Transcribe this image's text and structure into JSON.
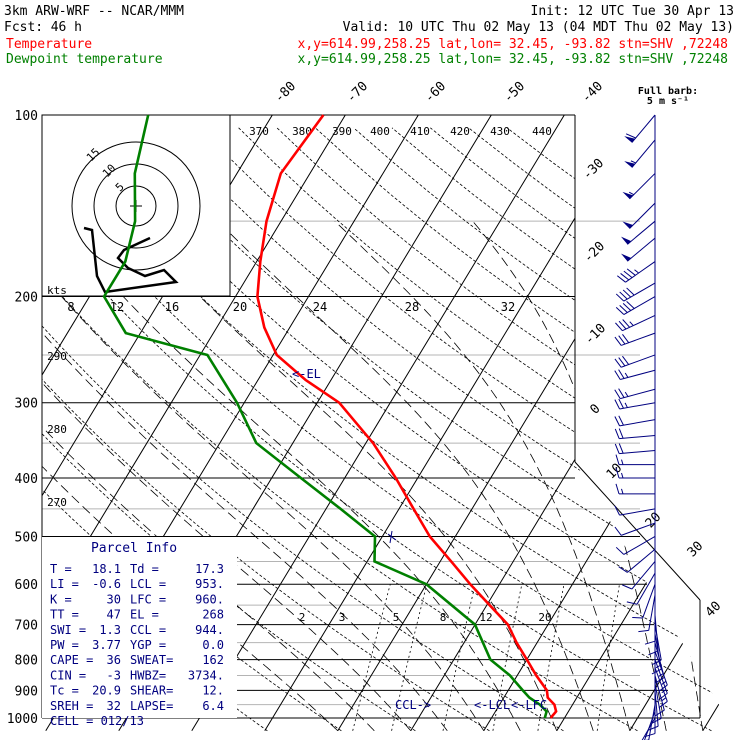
{
  "header": {
    "model": "3km ARW-WRF -- NCAR/MMM",
    "init": "Init: 12 UTC Tue 30 Apr 13",
    "fcst_label": "Fcst:",
    "fcst_value": "46 h",
    "valid": "Valid: 10 UTC Thu 02 May 13 (04 MDT Thu 02 May 13)",
    "temp_label": "Temperature",
    "temp_info": "x,y=614.99,258.25   lat,lon= 32.45, -93.82  stn=SHV ,72248",
    "dew_label": "Dewpoint temperature",
    "dew_info": "x,y=614.99,258.25   lat,lon= 32.45, -93.82  stn=SHV ,72248"
  },
  "colors": {
    "temperature": "#ff0000",
    "dewpoint": "#008000",
    "text": "#000000",
    "annotation": "#000080",
    "wind": "#000080",
    "moist_adiabat": "#000000"
  },
  "chart_data": {
    "type": "line",
    "title": "",
    "pressure_levels": [
      "100",
      "200",
      "300",
      "400",
      "500",
      "600",
      "700",
      "800",
      "900",
      "1000"
    ],
    "skewed_temperature_labels": [
      "-80",
      "-70",
      "-60",
      "-50",
      "-40",
      "-30",
      "-20",
      "-10",
      "0",
      "10",
      "20",
      "30",
      "40"
    ],
    "theta_labels": [
      "370",
      "380",
      "390",
      "400",
      "410",
      "420",
      "430",
      "440",
      "290",
      "280",
      "270"
    ],
    "mixing_ratio_labels": [
      "2",
      "3",
      "5",
      "8",
      "12",
      "20"
    ],
    "series": [
      {
        "name": "Temperature",
        "color": "#ff0000",
        "points": [
          [
            1000,
            18.1
          ],
          [
            975,
            18.3
          ],
          [
            950,
            17.5
          ],
          [
            925,
            16.0
          ],
          [
            900,
            15.3
          ],
          [
            850,
            12.6
          ],
          [
            800,
            10.0
          ],
          [
            750,
            7.2
          ],
          [
            700,
            4.5
          ],
          [
            650,
            0.4
          ],
          [
            600,
            -4.0
          ],
          [
            550,
            -8.5
          ],
          [
            500,
            -13.5
          ],
          [
            450,
            -18.0
          ],
          [
            400,
            -23.0
          ],
          [
            350,
            -29.0
          ],
          [
            300,
            -37.0
          ],
          [
            275,
            -43.5
          ],
          [
            250,
            -49.5
          ],
          [
            225,
            -53.5
          ],
          [
            200,
            -57.0
          ],
          [
            175,
            -59.5
          ],
          [
            150,
            -62.0
          ],
          [
            125,
            -64.0
          ],
          [
            100,
            -63.0
          ]
        ]
      },
      {
        "name": "Dewpoint temperature",
        "color": "#008000",
        "points": [
          [
            1000,
            17.3
          ],
          [
            975,
            17.0
          ],
          [
            950,
            15.5
          ],
          [
            925,
            13.5
          ],
          [
            900,
            12.0
          ],
          [
            850,
            9.0
          ],
          [
            800,
            5.0
          ],
          [
            700,
            0.0
          ],
          [
            600,
            -10.0
          ],
          [
            550,
            -19.0
          ],
          [
            500,
            -21.0
          ],
          [
            450,
            -28.0
          ],
          [
            400,
            -36.0
          ],
          [
            350,
            -45.0
          ],
          [
            300,
            -51.0
          ],
          [
            250,
            -59.0
          ],
          [
            230,
            -72.0
          ],
          [
            200,
            -78.0
          ],
          [
            175,
            -78.0
          ],
          [
            150,
            -80.0
          ],
          [
            125,
            -84.0
          ],
          [
            100,
            -87.0
          ]
        ]
      }
    ],
    "annotations": [
      {
        "text": "<-EL",
        "pressure": 268
      },
      {
        "text": "CCL->",
        "pressure": 944
      },
      {
        "text": "<-LCL",
        "pressure": 953
      },
      {
        "text": "<-LFC",
        "pressure": 960
      }
    ],
    "wind_barbs_note": "Full barb: 5 m s-1",
    "wind_barbs": [
      [
        100,
        220,
        30
      ],
      [
        110,
        220,
        28
      ],
      [
        125,
        225,
        27
      ],
      [
        140,
        225,
        25
      ],
      [
        150,
        230,
        25
      ],
      [
        160,
        230,
        24
      ],
      [
        175,
        235,
        22
      ],
      [
        190,
        240,
        20
      ],
      [
        200,
        240,
        19
      ],
      [
        215,
        245,
        18
      ],
      [
        230,
        250,
        16
      ],
      [
        250,
        250,
        14
      ],
      [
        265,
        255,
        12
      ],
      [
        285,
        255,
        12
      ],
      [
        300,
        260,
        12
      ],
      [
        320,
        260,
        10
      ],
      [
        340,
        265,
        10
      ],
      [
        360,
        265,
        9
      ],
      [
        380,
        270,
        8
      ],
      [
        400,
        270,
        8
      ],
      [
        425,
        270,
        7
      ],
      [
        450,
        260,
        6
      ],
      [
        475,
        250,
        6
      ],
      [
        500,
        240,
        5
      ],
      [
        525,
        230,
        5
      ],
      [
        550,
        220,
        5
      ],
      [
        575,
        210,
        5
      ],
      [
        600,
        200,
        6
      ],
      [
        625,
        190,
        5
      ],
      [
        650,
        180,
        6
      ],
      [
        675,
        175,
        5
      ],
      [
        700,
        170,
        6
      ],
      [
        725,
        170,
        7
      ],
      [
        750,
        165,
        7
      ],
      [
        775,
        160,
        8
      ],
      [
        800,
        160,
        8
      ],
      [
        825,
        160,
        7
      ],
      [
        850,
        165,
        6
      ],
      [
        875,
        170,
        5
      ],
      [
        900,
        175,
        5
      ],
      [
        925,
        180,
        5
      ],
      [
        950,
        190,
        4
      ],
      [
        975,
        200,
        3
      ],
      [
        1000,
        210,
        2
      ]
    ]
  },
  "hodograph": {
    "units_label": "kts",
    "axis_labels": [
      "8",
      "12",
      "16",
      "20",
      "24",
      "28",
      "32"
    ],
    "ring_labels": [
      "5",
      "10",
      "15"
    ]
  },
  "wind_legend": {
    "line1": "Full barb:",
    "line2": "5 m s⁻¹"
  },
  "parcel_info": {
    "title": "Parcel Info",
    "rows": [
      {
        "label1": "T  =",
        "value1": "18.1",
        "label2": "Td =",
        "value2": "17.3"
      },
      {
        "label1": "LI =",
        "value1": "-0.6",
        "label2": "LCL =",
        "value2": "953."
      },
      {
        "label1": "K  =",
        "value1": "30",
        "label2": "LFC =",
        "value2": "960."
      },
      {
        "label1": "TT =",
        "value1": "47",
        "label2": "EL  =",
        "value2": "268"
      },
      {
        "label1": "SWI =",
        "value1": "1.3",
        "label2": "CCL =",
        "value2": "944."
      },
      {
        "label1": "PW =",
        "value1": "3.77",
        "label2": "YGP =",
        "value2": "0.0"
      },
      {
        "label1": "CAPE =",
        "value1": "36",
        "label2": "SWEAT=",
        "value2": "162"
      },
      {
        "label1": "CIN =",
        "value1": "-3",
        "label2": "HWBZ=",
        "value2": "3734."
      },
      {
        "label1": "Tc =",
        "value1": "20.9",
        "label2": "SHEAR=",
        "value2": "12."
      },
      {
        "label1": "SREH =",
        "value1": "32",
        "label2": "LAPSE=",
        "value2": "6.4"
      }
    ],
    "cell": "CELL = 012/13"
  }
}
